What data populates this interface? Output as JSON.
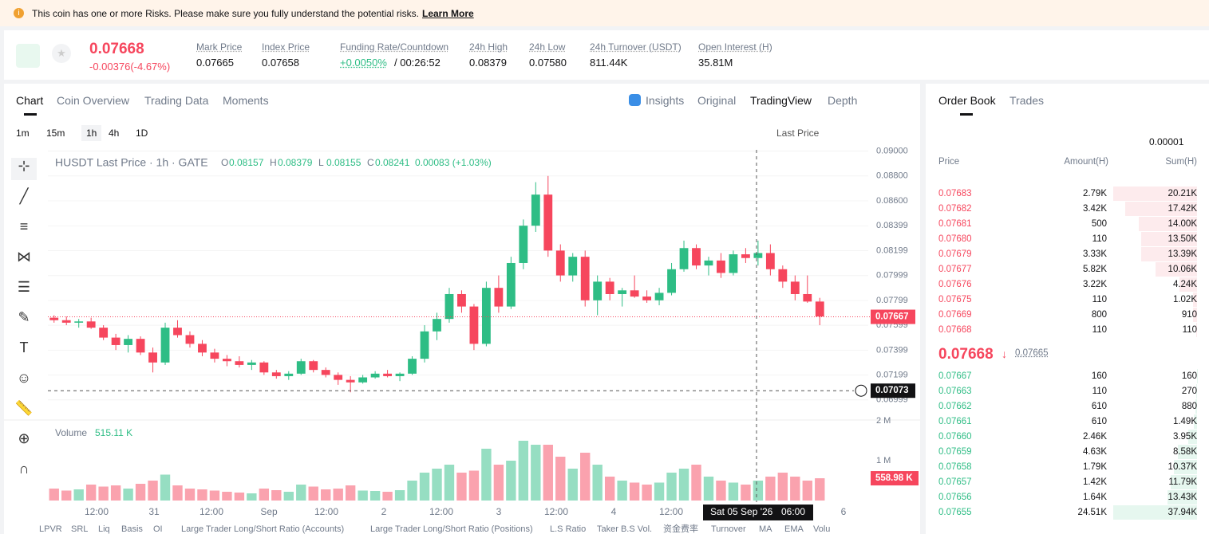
{
  "banner": {
    "text": "This coin has one or more Risks. Please make sure you fully understand the potential risks.",
    "link": "Learn More"
  },
  "ticker": {
    "price": "0.07668",
    "change": "-0.00376(-4.67%)",
    "stats": [
      {
        "label": "Mark Price",
        "value": "0.07665"
      },
      {
        "label": "Index Price",
        "value": "0.07658"
      },
      {
        "label": "Funding Rate/Countdown",
        "value": "+0.0050%",
        "extra": "/ 00:26:52"
      },
      {
        "label": "24h High",
        "value": "0.08379"
      },
      {
        "label": "24h Low",
        "value": "0.07580"
      },
      {
        "label": "24h Turnover (USDT)",
        "value": "811.44K"
      },
      {
        "label": "Open Interest (H)",
        "value": "35.81M"
      }
    ]
  },
  "chart_tabs": [
    "Chart",
    "Coin Overview",
    "Trading Data",
    "Moments"
  ],
  "view_tabs": [
    "Insights",
    "Original",
    "TradingView",
    "Depth"
  ],
  "intervals": [
    "1m",
    "15m",
    "1h",
    "4h",
    "1D"
  ],
  "price_type": "Last Price",
  "chart": {
    "type": "candlestick",
    "legend_title": "HUSDT Last Price · 1h · GATE",
    "ohlc": [
      {
        "label": "O",
        "value": "0.08157"
      },
      {
        "label": "H",
        "value": "0.08379"
      },
      {
        "label": "L",
        "value": "0.08155"
      },
      {
        "label": "C",
        "value": "0.08241"
      }
    ],
    "change": "0.00083 (+1.03%)",
    "up_color": "#2ebd85",
    "down_color": "#f6465d",
    "ylim": [
      0.0685,
      0.0901
    ],
    "yticks": [
      {
        "value": 0.09,
        "label": "0.09000"
      },
      {
        "value": 0.088,
        "label": "0.08800"
      },
      {
        "value": 0.086,
        "label": "0.08600"
      },
      {
        "value": 0.08399,
        "label": "0.08399"
      },
      {
        "value": 0.08199,
        "label": "0.08199"
      },
      {
        "value": 0.07999,
        "label": "0.07999"
      },
      {
        "value": 0.07799,
        "label": "0.07799"
      },
      {
        "value": 0.07599,
        "label": "0.07599"
      },
      {
        "value": 0.07399,
        "label": "0.07399"
      },
      {
        "value": 0.07199,
        "label": "0.07199"
      },
      {
        "value": 0.06999,
        "label": "0.06999"
      }
    ],
    "candles": [
      [
        0.0766,
        0.0768,
        0.0762,
        0.0764
      ],
      [
        0.0764,
        0.0767,
        0.076,
        0.0762
      ],
      [
        0.0762,
        0.0765,
        0.0758,
        0.0763
      ],
      [
        0.0763,
        0.0766,
        0.0757,
        0.0758
      ],
      [
        0.0758,
        0.076,
        0.0748,
        0.075
      ],
      [
        0.075,
        0.0753,
        0.074,
        0.0744
      ],
      [
        0.0744,
        0.0752,
        0.0738,
        0.0749
      ],
      [
        0.0749,
        0.0751,
        0.0736,
        0.0738
      ],
      [
        0.0738,
        0.0742,
        0.0722,
        0.073
      ],
      [
        0.073,
        0.0762,
        0.0728,
        0.0758
      ],
      [
        0.0758,
        0.0764,
        0.075,
        0.0752
      ],
      [
        0.0752,
        0.0755,
        0.0742,
        0.0745
      ],
      [
        0.0745,
        0.0748,
        0.0735,
        0.0738
      ],
      [
        0.0738,
        0.0741,
        0.073,
        0.0733
      ],
      [
        0.0733,
        0.0736,
        0.0727,
        0.0731
      ],
      [
        0.0731,
        0.0735,
        0.0726,
        0.0728
      ],
      [
        0.0728,
        0.0732,
        0.0724,
        0.073
      ],
      [
        0.073,
        0.0731,
        0.072,
        0.0722
      ],
      [
        0.0722,
        0.0724,
        0.0717,
        0.0719
      ],
      [
        0.0719,
        0.0723,
        0.0716,
        0.0721
      ],
      [
        0.0721,
        0.0733,
        0.072,
        0.0731
      ],
      [
        0.0731,
        0.0732,
        0.0722,
        0.0724
      ],
      [
        0.0724,
        0.0726,
        0.0718,
        0.072
      ],
      [
        0.072,
        0.0722,
        0.0712,
        0.0716
      ],
      [
        0.0716,
        0.0719,
        0.0706,
        0.0714
      ],
      [
        0.0714,
        0.072,
        0.0713,
        0.0718
      ],
      [
        0.0718,
        0.0723,
        0.0717,
        0.0721
      ],
      [
        0.0721,
        0.0724,
        0.0718,
        0.0719
      ],
      [
        0.0719,
        0.0722,
        0.0715,
        0.0721
      ],
      [
        0.0721,
        0.0735,
        0.072,
        0.0733
      ],
      [
        0.0733,
        0.076,
        0.073,
        0.0755
      ],
      [
        0.0755,
        0.077,
        0.0748,
        0.0765
      ],
      [
        0.0765,
        0.079,
        0.0762,
        0.0785
      ],
      [
        0.0785,
        0.0788,
        0.077,
        0.0775
      ],
      [
        0.0775,
        0.0777,
        0.074,
        0.0745
      ],
      [
        0.0745,
        0.0795,
        0.0743,
        0.079
      ],
      [
        0.079,
        0.08,
        0.077,
        0.0775
      ],
      [
        0.0775,
        0.0815,
        0.0773,
        0.081
      ],
      [
        0.081,
        0.0845,
        0.0805,
        0.084
      ],
      [
        0.084,
        0.0875,
        0.0835,
        0.0865
      ],
      [
        0.0865,
        0.088,
        0.0815,
        0.082
      ],
      [
        0.082,
        0.0825,
        0.0795,
        0.08
      ],
      [
        0.08,
        0.0818,
        0.0795,
        0.0815
      ],
      [
        0.0815,
        0.082,
        0.0775,
        0.078
      ],
      [
        0.078,
        0.08,
        0.0768,
        0.0795
      ],
      [
        0.0795,
        0.0798,
        0.078,
        0.0785
      ],
      [
        0.0785,
        0.079,
        0.0775,
        0.0788
      ],
      [
        0.0788,
        0.08,
        0.0782,
        0.0783
      ],
      [
        0.0783,
        0.0788,
        0.0778,
        0.078
      ],
      [
        0.078,
        0.079,
        0.0776,
        0.0786
      ],
      [
        0.0786,
        0.081,
        0.0784,
        0.0805
      ],
      [
        0.0805,
        0.0828,
        0.0803,
        0.0822
      ],
      [
        0.0822,
        0.0825,
        0.0805,
        0.0808
      ],
      [
        0.0808,
        0.0815,
        0.08,
        0.0812
      ],
      [
        0.0812,
        0.0818,
        0.0798,
        0.0802
      ],
      [
        0.0802,
        0.082,
        0.08,
        0.0817
      ],
      [
        0.0817,
        0.0822,
        0.081,
        0.0814
      ],
      [
        0.0814,
        0.0828,
        0.0808,
        0.0818
      ],
      [
        0.0818,
        0.0825,
        0.08,
        0.0805
      ],
      [
        0.0805,
        0.0808,
        0.079,
        0.0795
      ],
      [
        0.0795,
        0.08,
        0.078,
        0.0785
      ],
      [
        0.0785,
        0.08,
        0.0778,
        0.0779
      ],
      [
        0.0779,
        0.0782,
        0.076,
        0.0767
      ]
    ],
    "volumes": [
      300000,
      250000,
      280000,
      400000,
      350000,
      380000,
      300000,
      420000,
      500000,
      650000,
      380000,
      300000,
      280000,
      250000,
      220000,
      200000,
      180000,
      300000,
      260000,
      220000,
      400000,
      350000,
      280000,
      300000,
      380000,
      250000,
      240000,
      220000,
      260000,
      500000,
      700000,
      800000,
      900000,
      700000,
      750000,
      1300000,
      900000,
      1000000,
      1500000,
      1400000,
      1400000,
      1100000,
      800000,
      1200000,
      900000,
      600000,
      500000,
      450000,
      400000,
      450000,
      700000,
      800000,
      900000,
      600000,
      500000,
      450000,
      400000,
      500000,
      600000,
      700000,
      600000,
      500000,
      558980
    ],
    "volume_label": "Volume",
    "volume_value": "515.11 K",
    "vlim": [
      0,
      2100000
    ],
    "vticks": [
      {
        "value": 2000000,
        "label": "2 M"
      },
      {
        "value": 1000000,
        "label": "1 M"
      }
    ],
    "last_price": {
      "value": 0.07667,
      "label": "0.07667"
    },
    "cursor_price": {
      "value": 0.07073,
      "label": "0.07073"
    },
    "volume_tag": "558.98 K",
    "x_labels": [
      "12:00",
      "31",
      "12:00",
      "Sep",
      "12:00",
      "2",
      "12:00",
      "3",
      "12:00",
      "4",
      "12:00",
      null,
      null,
      "6"
    ],
    "cursor_time": "Sat 05 Sep '26",
    "cursor_clock": "06:00"
  },
  "indicators": [
    "LPVR",
    "SRL",
    "Liq",
    "Basis",
    "OI",
    "Large Trader Long/Short Ratio (Accounts)",
    "Large Trader Long/Short Ratio (Positions)",
    "L.S Ratio",
    "Taker B.S Vol.",
    "资金费率",
    "Turnover",
    "MA",
    "EMA",
    "Volu"
  ],
  "order_book": {
    "tabs": [
      "Order Book",
      "Trades"
    ],
    "precision": "0.00001",
    "headers": [
      "Price",
      "Amount(H)",
      "Sum(H)"
    ],
    "asks": [
      {
        "price": "0.07683",
        "amount": "2.79K",
        "sum": "20.21K",
        "sum_value": 20210
      },
      {
        "price": "0.07682",
        "amount": "3.42K",
        "sum": "17.42K",
        "sum_value": 17420
      },
      {
        "price": "0.07681",
        "amount": "500",
        "sum": "14.00K",
        "sum_value": 14000
      },
      {
        "price": "0.07680",
        "amount": "110",
        "sum": "13.50K",
        "sum_value": 13500
      },
      {
        "price": "0.07679",
        "amount": "3.33K",
        "sum": "13.39K",
        "sum_value": 13390
      },
      {
        "price": "0.07677",
        "amount": "5.82K",
        "sum": "10.06K",
        "sum_value": 10060
      },
      {
        "price": "0.07676",
        "amount": "3.22K",
        "sum": "4.24K",
        "sum_value": 4240
      },
      {
        "price": "0.07675",
        "amount": "110",
        "sum": "1.02K",
        "sum_value": 1020
      },
      {
        "price": "0.07669",
        "amount": "800",
        "sum": "910",
        "sum_value": 910
      },
      {
        "price": "0.07668",
        "amount": "110",
        "sum": "110",
        "sum_value": 110
      }
    ],
    "mid_price": "0.07668",
    "mark_price": "0.07665",
    "bids": [
      {
        "price": "0.07667",
        "amount": "160",
        "sum": "160",
        "sum_value": 160
      },
      {
        "price": "0.07663",
        "amount": "110",
        "sum": "270",
        "sum_value": 270
      },
      {
        "price": "0.07662",
        "amount": "610",
        "sum": "880",
        "sum_value": 880
      },
      {
        "price": "0.07661",
        "amount": "610",
        "sum": "1.49K",
        "sum_value": 1490
      },
      {
        "price": "0.07660",
        "amount": "2.46K",
        "sum": "3.95K",
        "sum_value": 3950
      },
      {
        "price": "0.07659",
        "amount": "4.63K",
        "sum": "8.58K",
        "sum_value": 8580
      },
      {
        "price": "0.07658",
        "amount": "1.79K",
        "sum": "10.37K",
        "sum_value": 10370
      },
      {
        "price": "0.07657",
        "amount": "1.42K",
        "sum": "11.79K",
        "sum_value": 11790
      },
      {
        "price": "0.07656",
        "amount": "1.64K",
        "sum": "13.43K",
        "sum_value": 13430
      },
      {
        "price": "0.07655",
        "amount": "24.51K",
        "sum": "37.94K",
        "sum_value": 37940
      }
    ]
  }
}
